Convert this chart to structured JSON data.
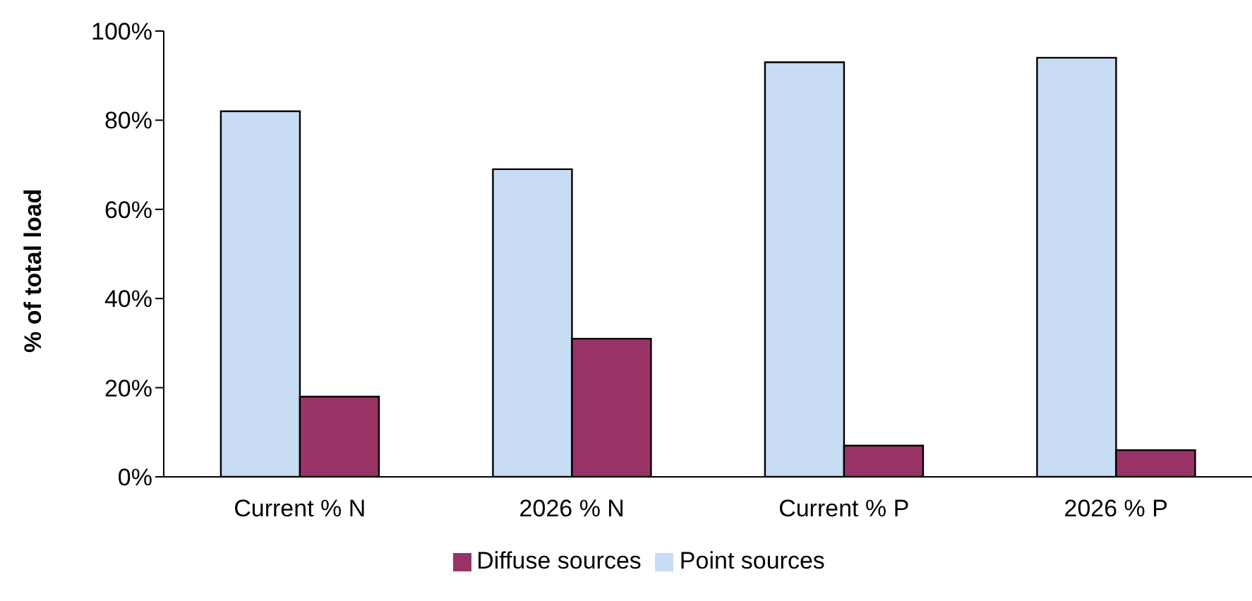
{
  "chart_data": {
    "type": "bar",
    "ylabel": "% of total load",
    "categories": [
      "Current % N",
      "2026 % N",
      "Current % P",
      "2026 % P"
    ],
    "series": [
      {
        "name": "Point sources",
        "color": "#c8dcf4",
        "values": [
          82,
          69,
          93,
          94
        ]
      },
      {
        "name": "Diffuse sources",
        "color": "#993366",
        "values": [
          18,
          31,
          7,
          6
        ]
      }
    ],
    "ylim": [
      0,
      100
    ],
    "yticks": [
      {
        "value": 0,
        "label": "0%"
      },
      {
        "value": 20,
        "label": "20%"
      },
      {
        "value": 40,
        "label": "40%"
      },
      {
        "value": 60,
        "label": "60%"
      },
      {
        "value": 80,
        "label": "80%"
      },
      {
        "value": 100,
        "label": "100%"
      }
    ],
    "grid": false,
    "legend": "bottom"
  }
}
